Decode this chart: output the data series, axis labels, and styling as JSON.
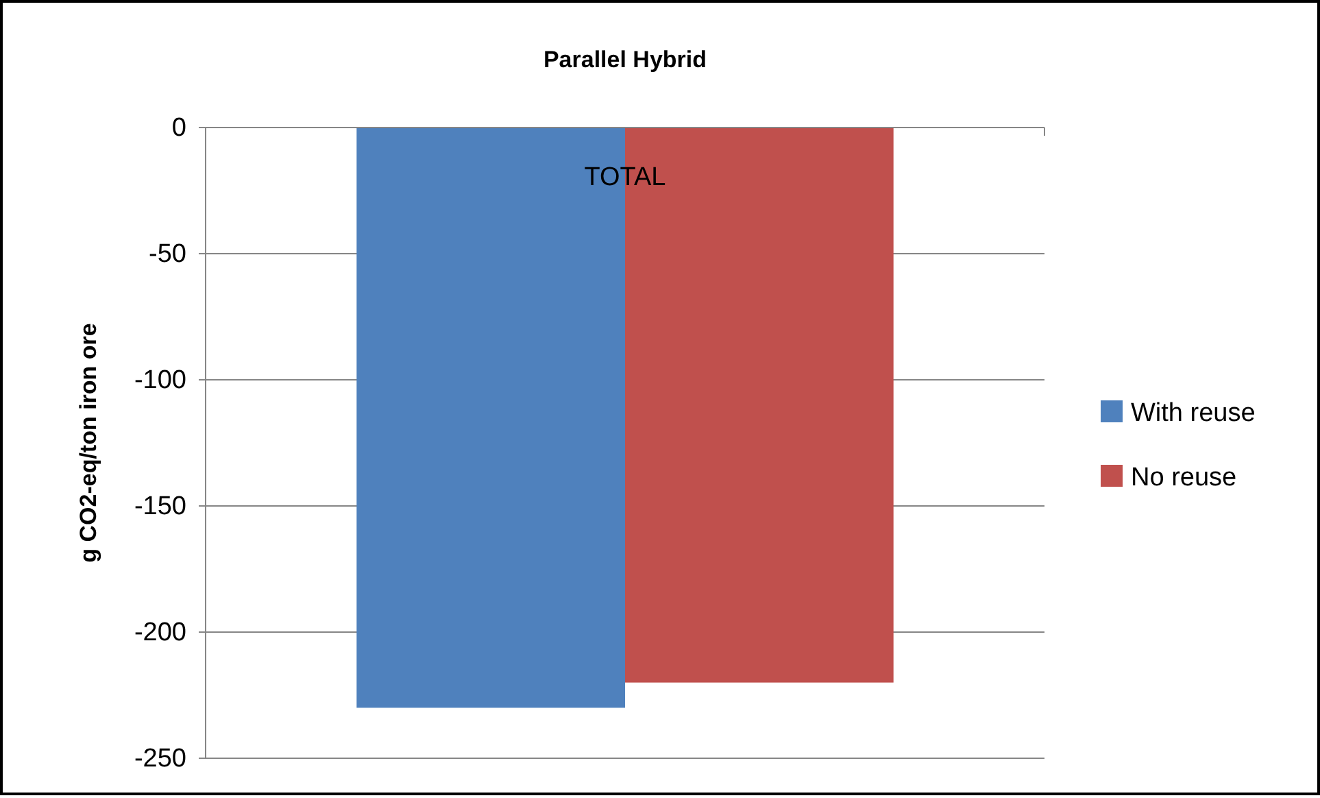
{
  "chart_data": {
    "type": "bar",
    "title": "Parallel Hybrid",
    "ylabel": "g CO2-eq/ton iron ore",
    "categories": [
      "TOTAL"
    ],
    "series": [
      {
        "name": "With reuse",
        "color": "#4f81bd",
        "values": [
          -230
        ]
      },
      {
        "name": "No reuse",
        "color": "#c0504d",
        "values": [
          -220
        ]
      }
    ],
    "ylim": [
      -250,
      0
    ],
    "yticks": [
      -250,
      -200,
      -150,
      -100,
      -50,
      0
    ],
    "grid": "y",
    "legend": "right"
  }
}
